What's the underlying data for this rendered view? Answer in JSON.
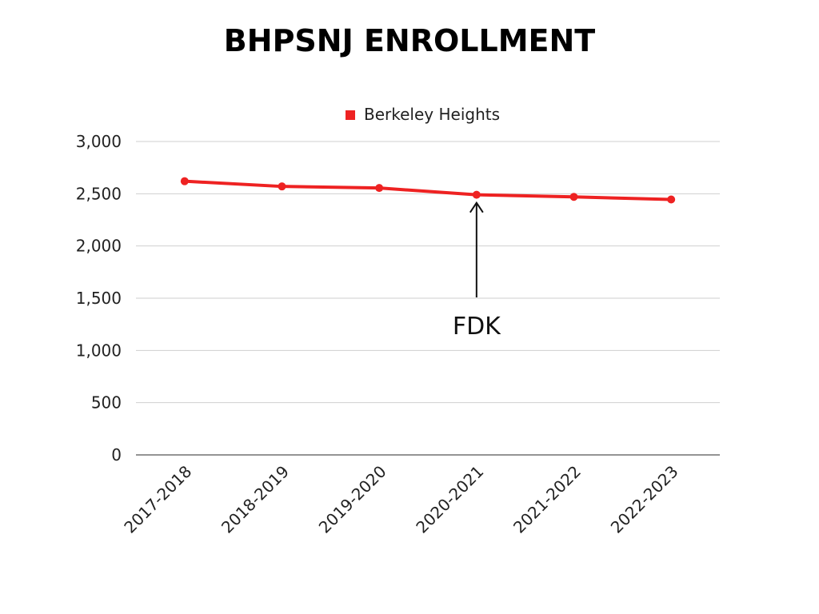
{
  "chart_data": {
    "type": "line",
    "title": "BHPSNJ ENROLLMENT",
    "categories": [
      "2017-2018",
      "2018-2019",
      "2019-2020",
      "2020-2021",
      "2021-2022",
      "2022-2023"
    ],
    "series": [
      {
        "name": "Berkeley Heights",
        "values": [
          2620,
          2570,
          2555,
          2490,
          2470,
          2445
        ],
        "color": "#ee2222"
      }
    ],
    "ylim": [
      0,
      3000
    ],
    "yticks": [
      0,
      500,
      1000,
      1500,
      2000,
      2500,
      3000
    ],
    "ytick_labels": [
      "0",
      "500",
      "1,000",
      "1,500",
      "2,000",
      "2,500",
      "3,000"
    ],
    "grid": true,
    "legend_position": "top-center",
    "annotation": {
      "text": "FDK",
      "category": "2020-2021"
    }
  }
}
